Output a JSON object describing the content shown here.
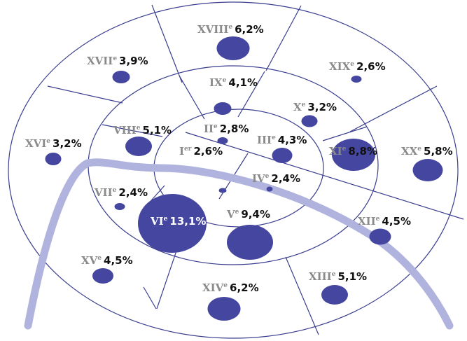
{
  "colors": {
    "bubble": "#4446a0",
    "line": "#3a3d8f",
    "river": "#b0b3dd",
    "roman": "#8a8a8a",
    "value": "#111111"
  },
  "arrondissements": [
    {
      "id": "i",
      "roman": "I",
      "sup": "er",
      "pct": "2,6%",
      "value": 2.6
    },
    {
      "id": "ii",
      "roman": "II",
      "sup": "e",
      "pct": "2,8%",
      "value": 2.8
    },
    {
      "id": "iii",
      "roman": "III",
      "sup": "e",
      "pct": "4,3%",
      "value": 4.3
    },
    {
      "id": "iv",
      "roman": "IV",
      "sup": "e",
      "pct": "2,4%",
      "value": 2.4
    },
    {
      "id": "v",
      "roman": "V",
      "sup": "e",
      "pct": "9,4%",
      "value": 9.4
    },
    {
      "id": "vi",
      "roman": "VI",
      "sup": "e",
      "pct": "13,1%",
      "value": 13.1
    },
    {
      "id": "vii",
      "roman": "VII",
      "sup": "e",
      "pct": "2,4%",
      "value": 2.4
    },
    {
      "id": "viii",
      "roman": "VIII",
      "sup": "e",
      "pct": "5,1%",
      "value": 5.1
    },
    {
      "id": "ix",
      "roman": "IX",
      "sup": "e",
      "pct": "4,1%",
      "value": 4.1
    },
    {
      "id": "x",
      "roman": "X",
      "sup": "e",
      "pct": "3,2%",
      "value": 3.2
    },
    {
      "id": "xi",
      "roman": "XI",
      "sup": "e",
      "pct": "8,8%",
      "value": 8.8
    },
    {
      "id": "xii",
      "roman": "XII",
      "sup": "e",
      "pct": "4,5%",
      "value": 4.5
    },
    {
      "id": "xiii",
      "roman": "XIII",
      "sup": "e",
      "pct": "5,1%",
      "value": 5.1
    },
    {
      "id": "xiv",
      "roman": "XIV",
      "sup": "e",
      "pct": "6,2%",
      "value": 6.2
    },
    {
      "id": "xv",
      "roman": "XV",
      "sup": "e",
      "pct": "4,5%",
      "value": 4.5
    },
    {
      "id": "xvi",
      "roman": "XVI",
      "sup": "e",
      "pct": "3,2%",
      "value": 3.2
    },
    {
      "id": "xvii",
      "roman": "XVII",
      "sup": "e",
      "pct": "3,9%",
      "value": 3.9
    },
    {
      "id": "xviii",
      "roman": "XVIII",
      "sup": "e",
      "pct": "6,2%",
      "value": 6.2
    },
    {
      "id": "xix",
      "roman": "XIX",
      "sup": "e",
      "pct": "2,6%",
      "value": 2.6
    },
    {
      "id": "xx",
      "roman": "XX",
      "sup": "e",
      "pct": "5,8%",
      "value": 5.8
    }
  ]
}
